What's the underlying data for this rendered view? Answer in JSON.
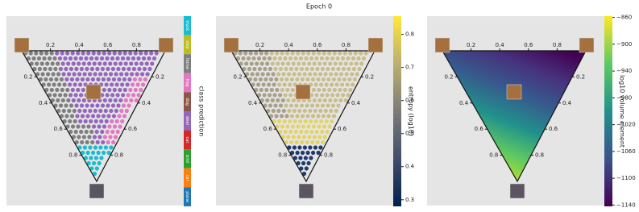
{
  "title": "Epoch 0",
  "chart_data": [
    {
      "type": "ternary",
      "axis_ticks": [
        0.2,
        0.4,
        0.6,
        0.8
      ],
      "colorbar": {
        "kind": "categorical",
        "label": "class prediction",
        "categories": [
          "truck",
          "ship",
          "horse",
          "frog",
          "dog",
          "deer",
          "cat",
          "bird",
          "car",
          "plane"
        ],
        "colors": [
          "#17becf",
          "#bcbd22",
          "#7f7f7f",
          "#e377c2",
          "#8c564b",
          "#9467bd",
          "#d62728",
          "#2ca02c",
          "#ff7f0e",
          "#1f77b4"
        ]
      }
    },
    {
      "type": "ternary",
      "axis_ticks": [
        0.2,
        0.4,
        0.6,
        0.8
      ],
      "colorbar": {
        "kind": "continuous",
        "label": "entropy (log10)",
        "colormap": "cividis",
        "lim": [
          0.28,
          0.855
        ],
        "ticks": [
          0.3,
          0.4,
          0.5,
          0.6,
          0.7,
          0.8
        ]
      }
    },
    {
      "type": "ternary",
      "axis_ticks": [
        0.2,
        0.4,
        0.6,
        0.8
      ],
      "colorbar": {
        "kind": "continuous",
        "label": "log10 volume element",
        "colormap": "viridis",
        "lim": [
          -1142,
          -858
        ],
        "ticks": [
          {
            "value": -860,
            "label": "−860"
          },
          {
            "value": -900,
            "label": "−900"
          },
          {
            "value": -940,
            "label": "−940"
          },
          {
            "value": -980,
            "label": "−980"
          },
          {
            "value": -1020,
            "label": "−1020"
          },
          {
            "value": -1060,
            "label": "−1060"
          },
          {
            "value": -1100,
            "label": "−1100"
          },
          {
            "value": -1140,
            "label": "−1140"
          }
        ]
      }
    }
  ]
}
